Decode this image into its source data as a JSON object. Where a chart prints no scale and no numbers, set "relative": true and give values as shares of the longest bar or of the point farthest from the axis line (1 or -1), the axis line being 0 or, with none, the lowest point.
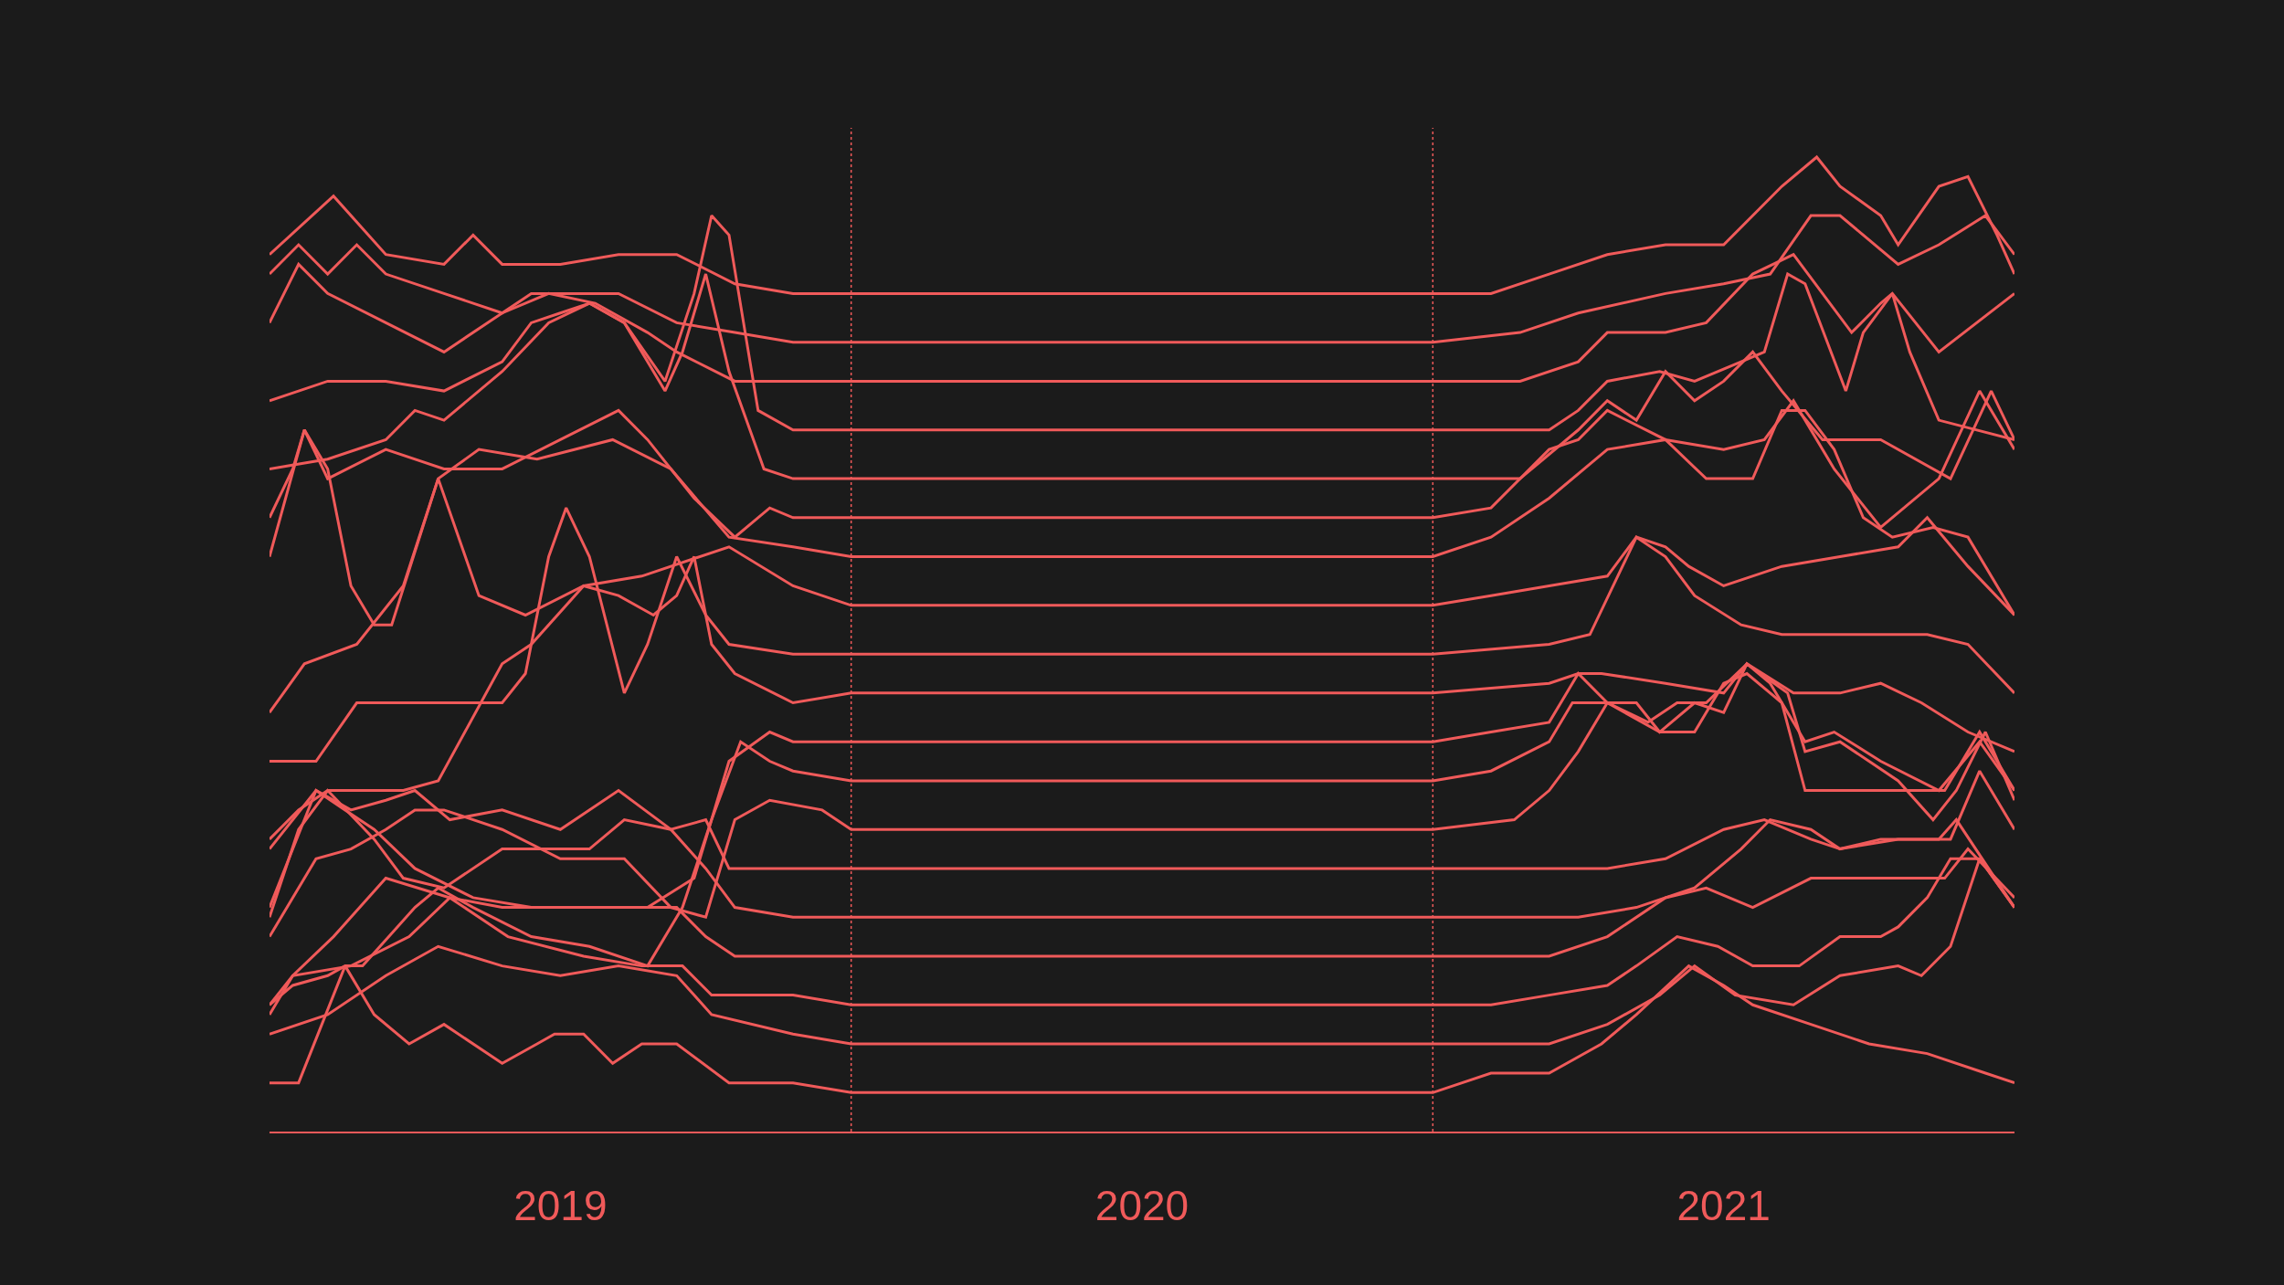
{
  "chart_data": {
    "type": "line",
    "relative": true,
    "grid": false,
    "xlim": [
      2019,
      2022
    ],
    "xticks": [
      {
        "value": 2019.5,
        "label": "2019"
      },
      {
        "value": 2020.5,
        "label": "2020"
      },
      {
        "value": 2021.5,
        "label": "2021"
      }
    ],
    "ref_lines": [
      {
        "axis": "x",
        "value": 2020,
        "label": null,
        "color": "#f05a5a",
        "line_style": "dotted"
      },
      {
        "axis": "x",
        "value": 2021,
        "label": null,
        "color": "#f05a5a",
        "line_style": "dotted"
      }
    ],
    "series": [
      {
        "color": "#f05a5a",
        "x": [
          2019,
          2019.11,
          2019.2,
          2019.3,
          2019.35,
          2019.4,
          2019.5,
          2019.6,
          2019.7,
          2019.8,
          2019.9,
          2020,
          2021,
          2021.1,
          2021.2,
          2021.3,
          2021.4,
          2021.5,
          2021.6,
          2021.66,
          2021.7,
          2021.77,
          2021.8,
          2021.87,
          2021.92,
          2021.97,
          2022
        ],
        "values": [
          0.9,
          0.96,
          0.9,
          0.89,
          0.92,
          0.89,
          0.89,
          0.9,
          0.9,
          0.87,
          0.86,
          0.86,
          0.86,
          0.86,
          0.88,
          0.9,
          0.91,
          0.91,
          0.97,
          1.0,
          0.97,
          0.94,
          0.91,
          0.97,
          0.98,
          0.92,
          0.88
        ]
      },
      {
        "color": "#f05a5a",
        "x": [
          2019,
          2019.05,
          2019.1,
          2019.15,
          2019.2,
          2019.3,
          2019.4,
          2019.45,
          2019.5,
          2019.6,
          2019.7,
          2019.8,
          2019.9,
          2020,
          2021,
          2021.15,
          2021.25,
          2021.4,
          2021.5,
          2021.58,
          2021.65,
          2021.7,
          2021.8,
          2021.87,
          2021.95,
          2022
        ],
        "values": [
          0.88,
          0.91,
          0.88,
          0.91,
          0.88,
          0.86,
          0.84,
          0.86,
          0.86,
          0.86,
          0.83,
          0.82,
          0.81,
          0.81,
          0.81,
          0.82,
          0.84,
          0.86,
          0.87,
          0.88,
          0.94,
          0.94,
          0.89,
          0.91,
          0.94,
          0.9
        ]
      },
      {
        "color": "#f05a5a",
        "x": [
          2019,
          2019.05,
          2019.1,
          2019.2,
          2019.3,
          2019.4,
          2019.48,
          2019.56,
          2019.65,
          2019.7,
          2019.8,
          2019.9,
          2020,
          2021,
          2021.15,
          2021.25,
          2021.3,
          2021.4,
          2021.47,
          2021.55,
          2021.62,
          2021.67,
          2021.72,
          2021.77,
          2021.79,
          2021.87,
          2022
        ],
        "values": [
          0.83,
          0.89,
          0.86,
          0.83,
          0.8,
          0.84,
          0.86,
          0.85,
          0.82,
          0.8,
          0.77,
          0.77,
          0.77,
          0.77,
          0.77,
          0.79,
          0.82,
          0.82,
          0.83,
          0.88,
          0.9,
          0.86,
          0.82,
          0.85,
          0.86,
          0.8,
          0.86
        ]
      },
      {
        "color": "#f05a5a",
        "x": [
          2019,
          2019.1,
          2019.2,
          2019.3,
          2019.4,
          2019.45,
          2019.5,
          2019.55,
          2019.61,
          2019.68,
          2019.73,
          2019.76,
          2019.79,
          2019.84,
          2019.9,
          2020,
          2021,
          2021.2,
          2021.25,
          2021.3,
          2021.39,
          2021.45,
          2021.53,
          2021.57,
          2021.61,
          2021.64,
          2021.71,
          2021.74,
          2021.79,
          2021.82,
          2021.87,
          2022
        ],
        "values": [
          0.75,
          0.77,
          0.77,
          0.76,
          0.79,
          0.83,
          0.84,
          0.85,
          0.83,
          0.77,
          0.86,
          0.94,
          0.92,
          0.74,
          0.72,
          0.72,
          0.72,
          0.72,
          0.74,
          0.77,
          0.78,
          0.77,
          0.79,
          0.8,
          0.88,
          0.87,
          0.76,
          0.82,
          0.86,
          0.8,
          0.73,
          0.71
        ]
      },
      {
        "color": "#f05a5a",
        "x": [
          2019,
          2019.1,
          2019.2,
          2019.25,
          2019.3,
          2019.4,
          2019.48,
          2019.55,
          2019.61,
          2019.68,
          2019.71,
          2019.75,
          2019.79,
          2019.85,
          2019.9,
          2020,
          2021,
          2021.15,
          2021.25,
          2021.3,
          2021.35,
          2021.4,
          2021.45,
          2021.5,
          2021.55,
          2021.6,
          2021.67,
          2021.77,
          2021.89,
          2021.96,
          2022
        ],
        "values": [
          0.68,
          0.69,
          0.71,
          0.74,
          0.73,
          0.78,
          0.83,
          0.85,
          0.83,
          0.76,
          0.8,
          0.88,
          0.78,
          0.68,
          0.67,
          0.67,
          0.67,
          0.67,
          0.72,
          0.75,
          0.73,
          0.78,
          0.75,
          0.77,
          0.8,
          0.76,
          0.71,
          0.71,
          0.67,
          0.76,
          0.71
        ]
      },
      {
        "color": "#f05a5a",
        "x": [
          2019,
          2019.04,
          2019.06,
          2019.1,
          2019.2,
          2019.3,
          2019.4,
          2019.5,
          2019.6,
          2019.65,
          2019.73,
          2019.8,
          2019.86,
          2019.9,
          2020,
          2021,
          2021.1,
          2021.2,
          2021.25,
          2021.3,
          2021.4,
          2021.5,
          2021.57,
          2021.62,
          2021.69,
          2021.77,
          2021.87,
          2021.94,
          2022
        ],
        "values": [
          0.63,
          0.68,
          0.72,
          0.67,
          0.7,
          0.68,
          0.68,
          0.71,
          0.74,
          0.71,
          0.65,
          0.61,
          0.64,
          0.63,
          0.63,
          0.63,
          0.64,
          0.7,
          0.71,
          0.74,
          0.71,
          0.7,
          0.71,
          0.75,
          0.68,
          0.62,
          0.67,
          0.76,
          0.7
        ]
      },
      {
        "color": "#f05a5a",
        "x": [
          2019,
          2019.06,
          2019.1,
          2019.14,
          2019.18,
          2019.21,
          2019.29,
          2019.36,
          2019.46,
          2019.59,
          2019.69,
          2019.79,
          2019.9,
          2020,
          2021,
          2021.1,
          2021.2,
          2021.3,
          2021.4,
          2021.47,
          2021.55,
          2021.6,
          2021.64,
          2021.69,
          2021.74,
          2021.79,
          2021.86,
          2021.92,
          2022
        ],
        "values": [
          0.59,
          0.72,
          0.68,
          0.56,
          0.52,
          0.52,
          0.67,
          0.7,
          0.69,
          0.71,
          0.68,
          0.61,
          0.6,
          0.59,
          0.59,
          0.61,
          0.65,
          0.7,
          0.71,
          0.67,
          0.67,
          0.74,
          0.74,
          0.7,
          0.63,
          0.61,
          0.62,
          0.61,
          0.53
        ]
      },
      {
        "color": "#f05a5a",
        "x": [
          2019,
          2019.06,
          2019.15,
          2019.23,
          2019.29,
          2019.36,
          2019.44,
          2019.54,
          2019.64,
          2019.79,
          2019.9,
          2020,
          2021,
          2021.1,
          2021.2,
          2021.3,
          2021.35,
          2021.4,
          2021.44,
          2021.5,
          2021.6,
          2021.7,
          2021.8,
          2021.85,
          2021.92,
          2022
        ],
        "values": [
          0.43,
          0.48,
          0.5,
          0.56,
          0.67,
          0.55,
          0.53,
          0.56,
          0.57,
          0.6,
          0.56,
          0.54,
          0.54,
          0.55,
          0.56,
          0.57,
          0.61,
          0.6,
          0.58,
          0.56,
          0.58,
          0.59,
          0.6,
          0.63,
          0.58,
          0.53
        ]
      },
      {
        "color": "#f05a5a",
        "x": [
          2019,
          2019.08,
          2019.15,
          2019.25,
          2019.4,
          2019.44,
          2019.48,
          2019.51,
          2019.55,
          2019.61,
          2019.65,
          2019.7,
          2019.75,
          2019.79,
          2019.9,
          2020,
          2021,
          2021.2,
          2021.27,
          2021.35,
          2021.4,
          2021.45,
          2021.53,
          2021.6,
          2021.85,
          2021.92,
          2022
        ],
        "values": [
          0.38,
          0.38,
          0.44,
          0.44,
          0.44,
          0.47,
          0.59,
          0.64,
          0.59,
          0.45,
          0.5,
          0.59,
          0.53,
          0.5,
          0.49,
          0.49,
          0.49,
          0.5,
          0.51,
          0.61,
          0.59,
          0.55,
          0.52,
          0.51,
          0.51,
          0.5,
          0.45
        ]
      },
      {
        "color": "#f05a5a",
        "x": [
          2019,
          2019.05,
          2019.1,
          2019.16,
          2019.23,
          2019.29,
          2019.4,
          2019.45,
          2019.54,
          2019.6,
          2019.66,
          2019.7,
          2019.73,
          2019.76,
          2019.8,
          2019.9,
          2020,
          2021,
          2021.2,
          2021.25,
          2021.29,
          2021.4,
          2021.5,
          2021.54,
          2021.62,
          2021.7,
          2021.77,
          2021.84,
          2021.92,
          2022
        ],
        "values": [
          0.3,
          0.33,
          0.35,
          0.35,
          0.35,
          0.36,
          0.48,
          0.5,
          0.56,
          0.55,
          0.53,
          0.55,
          0.59,
          0.5,
          0.47,
          0.44,
          0.45,
          0.45,
          0.46,
          0.47,
          0.47,
          0.46,
          0.45,
          0.48,
          0.45,
          0.45,
          0.46,
          0.44,
          0.41,
          0.39
        ]
      },
      {
        "color": "#f05a5a",
        "x": [
          2019,
          2019.04,
          2019.08,
          2019.13,
          2019.18,
          2019.25,
          2019.35,
          2019.45,
          2019.55,
          2019.65,
          2019.73,
          2019.79,
          2019.86,
          2019.9,
          2020,
          2021,
          2021.1,
          2021.2,
          2021.25,
          2021.3,
          2021.35,
          2021.39,
          2021.45,
          2021.5,
          2021.54,
          2021.58,
          2021.64,
          2021.69,
          2021.77,
          2021.87,
          2021.94,
          2022
        ],
        "values": [
          0.23,
          0.29,
          0.35,
          0.33,
          0.31,
          0.27,
          0.24,
          0.23,
          0.23,
          0.23,
          0.26,
          0.38,
          0.41,
          0.4,
          0.4,
          0.4,
          0.41,
          0.42,
          0.47,
          0.44,
          0.44,
          0.41,
          0.44,
          0.43,
          0.48,
          0.46,
          0.4,
          0.41,
          0.38,
          0.35,
          0.4,
          0.35
        ]
      },
      {
        "color": "#f05a5a",
        "x": [
          2019,
          2019.04,
          2019.1,
          2019.13,
          2019.16,
          2019.25,
          2019.29,
          2019.35,
          2019.45,
          2019.55,
          2019.65,
          2019.71,
          2019.76,
          2019.81,
          2019.86,
          2019.9,
          2020,
          2021,
          2021.1,
          2021.2,
          2021.24,
          2021.3,
          2021.37,
          2021.42,
          2021.47,
          2021.54,
          2021.61,
          2021.64,
          2021.7,
          2021.75,
          2021.8,
          2021.86,
          2021.9,
          2021.95,
          2022
        ],
        "values": [
          0.13,
          0.15,
          0.16,
          0.17,
          0.17,
          0.23,
          0.25,
          0.23,
          0.2,
          0.19,
          0.17,
          0.23,
          0.32,
          0.4,
          0.38,
          0.37,
          0.36,
          0.36,
          0.37,
          0.4,
          0.44,
          0.44,
          0.42,
          0.44,
          0.44,
          0.48,
          0.45,
          0.39,
          0.4,
          0.38,
          0.36,
          0.32,
          0.35,
          0.41,
          0.34
        ]
      },
      {
        "color": "#f05a5a",
        "x": [
          2019,
          2019.08,
          2019.14,
          2019.2,
          2019.25,
          2019.3,
          2019.4,
          2019.5,
          2019.61,
          2019.69,
          2019.75,
          2019.8,
          2019.86,
          2019.95,
          2020,
          2021,
          2021.14,
          2021.2,
          2021.25,
          2021.3,
          2021.39,
          2021.45,
          2021.5,
          2021.54,
          2021.6,
          2021.64,
          2021.72,
          2021.88,
          2021.94,
          2022
        ],
        "values": [
          0.2,
          0.28,
          0.29,
          0.31,
          0.33,
          0.33,
          0.31,
          0.28,
          0.28,
          0.23,
          0.22,
          0.32,
          0.34,
          0.33,
          0.31,
          0.31,
          0.32,
          0.35,
          0.39,
          0.44,
          0.41,
          0.41,
          0.46,
          0.47,
          0.44,
          0.35,
          0.35,
          0.35,
          0.41,
          0.35
        ]
      },
      {
        "color": "#f05a5a",
        "x": [
          2019,
          2019.08,
          2019.14,
          2019.2,
          2019.25,
          2019.31,
          2019.4,
          2019.5,
          2019.6,
          2019.69,
          2019.75,
          2019.79,
          2019.9,
          2020,
          2021,
          2021.2,
          2021.3,
          2021.4,
          2021.5,
          2021.57,
          2021.65,
          2021.7,
          2021.8,
          2021.89,
          2021.94,
          2022
        ],
        "values": [
          0.29,
          0.35,
          0.33,
          0.34,
          0.35,
          0.32,
          0.33,
          0.31,
          0.35,
          0.31,
          0.32,
          0.27,
          0.27,
          0.27,
          0.27,
          0.27,
          0.27,
          0.28,
          0.31,
          0.32,
          0.3,
          0.29,
          0.3,
          0.3,
          0.37,
          0.31
        ]
      },
      {
        "color": "#f05a5a",
        "x": [
          2019,
          2019.05,
          2019.1,
          2019.18,
          2019.23,
          2019.3,
          2019.4,
          2019.5,
          2019.55,
          2019.61,
          2019.69,
          2019.75,
          2019.8,
          2019.9,
          2020,
          2021,
          2021.17,
          2021.25,
          2021.35,
          2021.45,
          2021.53,
          2021.58,
          2021.65,
          2021.7,
          2021.77,
          2021.87,
          2021.9,
          2022
        ],
        "values": [
          0.22,
          0.31,
          0.35,
          0.3,
          0.26,
          0.25,
          0.29,
          0.29,
          0.29,
          0.32,
          0.31,
          0.27,
          0.23,
          0.22,
          0.22,
          0.22,
          0.22,
          0.22,
          0.23,
          0.25,
          0.29,
          0.32,
          0.31,
          0.29,
          0.3,
          0.3,
          0.32,
          0.23
        ]
      },
      {
        "color": "#f05a5a",
        "x": [
          2019,
          2019.04,
          2019.11,
          2019.2,
          2019.31,
          2019.4,
          2019.5,
          2019.6,
          2019.7,
          2019.75,
          2019.8,
          2019.9,
          2020,
          2021,
          2021.1,
          2021.2,
          2021.3,
          2021.4,
          2021.47,
          2021.55,
          2021.65,
          2021.7,
          2021.8,
          2021.88,
          2021.92,
          2022
        ],
        "values": [
          0.13,
          0.16,
          0.2,
          0.26,
          0.24,
          0.23,
          0.23,
          0.23,
          0.23,
          0.2,
          0.18,
          0.18,
          0.18,
          0.18,
          0.18,
          0.18,
          0.2,
          0.24,
          0.25,
          0.23,
          0.26,
          0.26,
          0.26,
          0.26,
          0.29,
          0.24
        ]
      },
      {
        "color": "#f05a5a",
        "x": [
          2019,
          2019.04,
          2019.14,
          2019.24,
          2019.31,
          2019.41,
          2019.54,
          2019.64,
          2019.71,
          2019.76,
          2019.9,
          2020,
          2021,
          2021.1,
          2021.2,
          2021.3,
          2021.35,
          2021.42,
          2021.49,
          2021.55,
          2021.63,
          2021.7,
          2021.77,
          2021.8,
          2021.85,
          2021.89,
          2021.94,
          2022
        ],
        "values": [
          0.12,
          0.16,
          0.17,
          0.2,
          0.24,
          0.2,
          0.18,
          0.17,
          0.17,
          0.14,
          0.14,
          0.13,
          0.13,
          0.13,
          0.14,
          0.15,
          0.17,
          0.2,
          0.19,
          0.17,
          0.17,
          0.2,
          0.2,
          0.21,
          0.24,
          0.28,
          0.28,
          0.23
        ]
      },
      {
        "color": "#f05a5a",
        "x": [
          2019,
          2019.1,
          2019.2,
          2019.29,
          2019.4,
          2019.5,
          2019.6,
          2019.7,
          2019.76,
          2019.9,
          2020,
          2021,
          2021.1,
          2021.2,
          2021.3,
          2021.39,
          2021.45,
          2021.52,
          2021.62,
          2021.7,
          2021.8,
          2021.84,
          2021.89,
          2021.94,
          2022
        ],
        "values": [
          0.1,
          0.12,
          0.16,
          0.19,
          0.17,
          0.16,
          0.17,
          0.16,
          0.12,
          0.1,
          0.09,
          0.09,
          0.09,
          0.09,
          0.11,
          0.14,
          0.17,
          0.14,
          0.13,
          0.16,
          0.17,
          0.16,
          0.19,
          0.28,
          0.23
        ]
      },
      {
        "color": "#f05a5a",
        "x": [
          2019,
          2019.05,
          2019.13,
          2019.18,
          2019.24,
          2019.3,
          2019.4,
          2019.46,
          2019.49,
          2019.54,
          2019.59,
          2019.64,
          2019.7,
          2019.79,
          2019.9,
          2020,
          2021,
          2021.1,
          2021.2,
          2021.29,
          2021.35,
          2021.44,
          2021.5,
          2021.55,
          2021.65,
          2021.75,
          2021.85,
          2021.95,
          2022
        ],
        "values": [
          0.05,
          0.05,
          0.17,
          0.12,
          0.09,
          0.11,
          0.07,
          0.09,
          0.1,
          0.1,
          0.07,
          0.09,
          0.09,
          0.05,
          0.05,
          0.04,
          0.04,
          0.06,
          0.06,
          0.09,
          0.12,
          0.17,
          0.15,
          0.13,
          0.11,
          0.09,
          0.08,
          0.06,
          0.05
        ]
      }
    ]
  }
}
